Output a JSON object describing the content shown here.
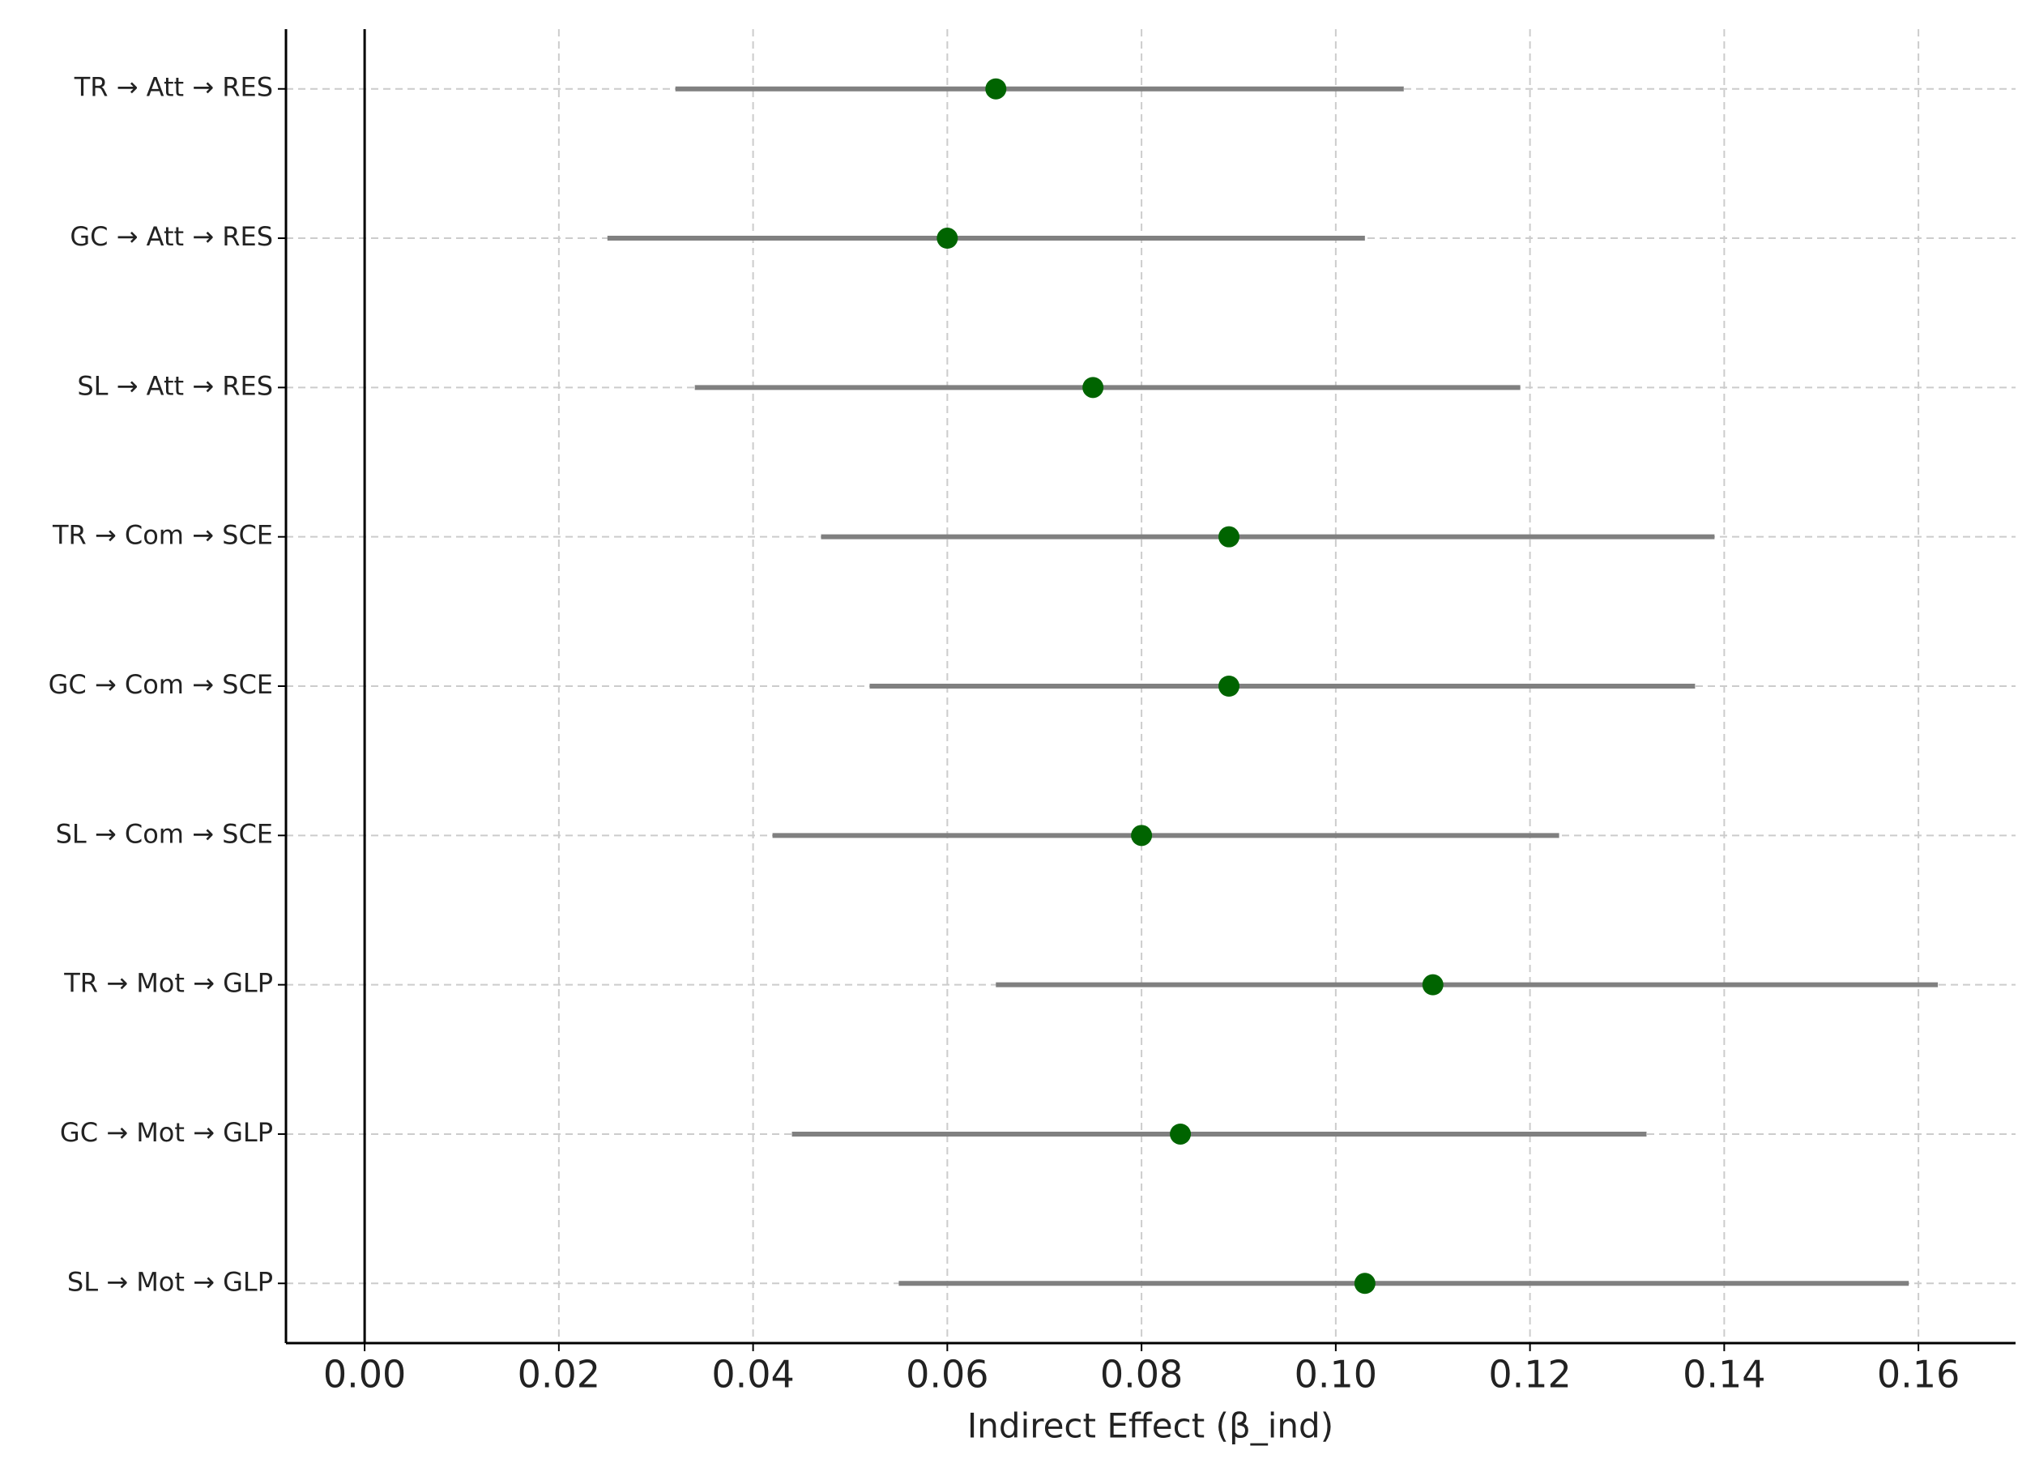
{
  "chart_data": {
    "type": "forest",
    "x_label": "Indirect Effect (β_ind)",
    "categories": [
      "TR → Att → RES",
      "GC → Att → RES",
      "SL → Att → RES",
      "TR → Com → SCE",
      "GC → Com → SCE",
      "SL → Com → SCE",
      "TR → Mot → GLP",
      "GC → Mot → GLP",
      "SL → Mot → GLP"
    ],
    "values": [
      0.065,
      0.06,
      0.075,
      0.089,
      0.089,
      0.08,
      0.11,
      0.084,
      0.103
    ],
    "lower": [
      0.032,
      0.025,
      0.034,
      0.047,
      0.052,
      0.042,
      0.065,
      0.044,
      0.055
    ],
    "upper": [
      0.107,
      0.103,
      0.119,
      0.139,
      0.137,
      0.123,
      0.162,
      0.132,
      0.159
    ],
    "color": "#006400",
    "ci_color": "#808080",
    "xlim": [
      -0.0081,
      0.17
    ],
    "xticks": [
      {
        "value": 0,
        "label": "0.00"
      },
      {
        "value": 0.02,
        "label": "0.02"
      },
      {
        "value": 0.04,
        "label": "0.04"
      },
      {
        "value": 0.06,
        "label": "0.06"
      },
      {
        "value": 0.08,
        "label": "0.08"
      },
      {
        "value": 0.1,
        "label": "0.10"
      },
      {
        "value": 0.12,
        "label": "0.12"
      },
      {
        "value": 0.14,
        "label": "0.14"
      },
      {
        "value": 0.16,
        "label": "0.16"
      }
    ],
    "reference_line": 0,
    "grid": true
  }
}
